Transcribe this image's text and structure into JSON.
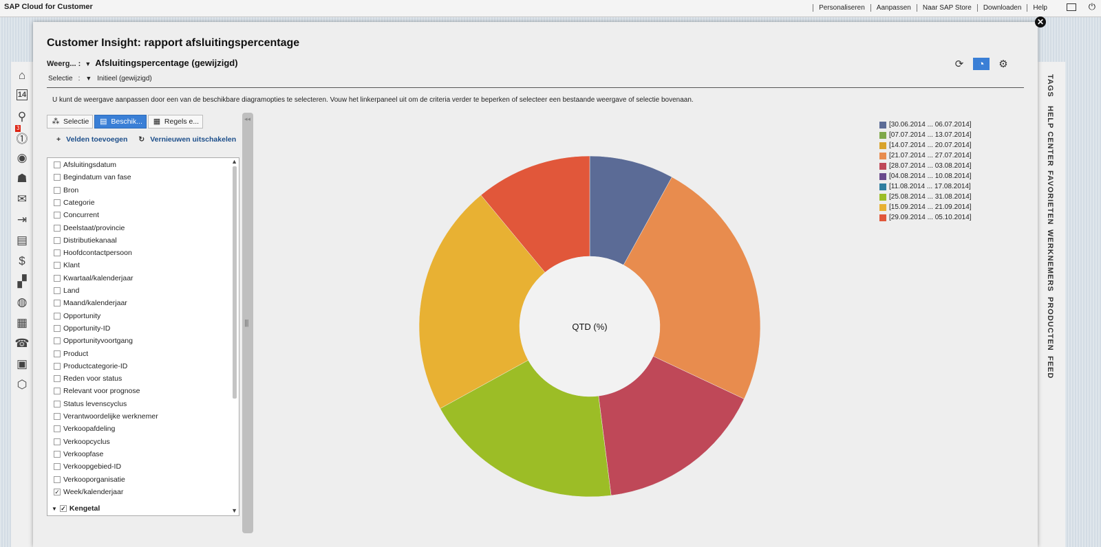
{
  "topbar": {
    "brand": "SAP Cloud for Customer",
    "links": [
      "Personaliseren",
      "Aanpassen",
      "Naar SAP Store",
      "Downloaden",
      "Help"
    ]
  },
  "leftrail": {
    "icons": [
      "home-icon",
      "calendar-14-icon",
      "search-icon",
      "alert-icon",
      "person-icon",
      "people-icon",
      "mail-icon",
      "sales-icon",
      "notebook-icon",
      "dollar-icon",
      "chart-person-icon",
      "globe-icon",
      "calendar-icon",
      "phone-book-icon",
      "clipboard-icon",
      "box-icon"
    ],
    "badge": "3"
  },
  "rightrail": {
    "tabs": [
      "TAGS",
      "HELP CENTER",
      "FAVORIETEN",
      "WERKNEMERS",
      "PRODUCTEN",
      "FEED"
    ]
  },
  "dialog": {
    "title": "Customer Insight: rapport afsluitingspercentage",
    "view_label": "Weerg... :",
    "view_value": "Afsluitingspercentage (gewijzigd)",
    "selection_label": "Selectie",
    "selection_colon": ":",
    "selection_value": "Initieel (gewijzigd)",
    "hint": "U kunt de weergave aanpassen door een van de beschikbare diagramopties te selecteren. Vouw het linkerpaneel uit om de criteria verder te beperken of selecteer een bestaande weergave of selectie bovenaan."
  },
  "panel": {
    "tabs": [
      "Selectie",
      "Beschik...",
      "Regels e..."
    ],
    "add_fields": "Velden toevoegen",
    "refresh": "Vernieuwen uitschakelen",
    "fields": [
      {
        "label": "Afsluitingsdatum",
        "checked": false
      },
      {
        "label": "Begindatum van fase",
        "checked": false
      },
      {
        "label": "Bron",
        "checked": false
      },
      {
        "label": "Categorie",
        "checked": false
      },
      {
        "label": "Concurrent",
        "checked": false
      },
      {
        "label": "Deelstaat/provincie",
        "checked": false
      },
      {
        "label": "Distributiekanaal",
        "checked": false
      },
      {
        "label": "Hoofdcontactpersoon",
        "checked": false
      },
      {
        "label": "Klant",
        "checked": false
      },
      {
        "label": "Kwartaal/kalenderjaar",
        "checked": false
      },
      {
        "label": "Land",
        "checked": false
      },
      {
        "label": "Maand/kalenderjaar",
        "checked": false
      },
      {
        "label": "Opportunity",
        "checked": false
      },
      {
        "label": "Opportunity-ID",
        "checked": false
      },
      {
        "label": "Opportunityvoortgang",
        "checked": false
      },
      {
        "label": "Product",
        "checked": false
      },
      {
        "label": "Productcategorie-ID",
        "checked": false
      },
      {
        "label": "Reden voor status",
        "checked": false
      },
      {
        "label": "Relevant voor prognose",
        "checked": false
      },
      {
        "label": "Status levenscyclus",
        "checked": false
      },
      {
        "label": "Verantwoordelijke werknemer",
        "checked": false
      },
      {
        "label": "Verkoopafdeling",
        "checked": false
      },
      {
        "label": "Verkoopcyclus",
        "checked": false
      },
      {
        "label": "Verkoopfase",
        "checked": false
      },
      {
        "label": "Verkoopgebied-ID",
        "checked": false
      },
      {
        "label": "Verkooporganisatie",
        "checked": false
      },
      {
        "label": "Week/kalenderjaar",
        "checked": true
      }
    ],
    "group_label": "Kengetal"
  },
  "chart_data": {
    "type": "pie",
    "center_label": "QTD (%)",
    "slices": [
      {
        "name": "[30.06.2014 ... 06.07.2014]",
        "value": 8,
        "color": "#5b6b96"
      },
      {
        "name": "[07.07.2014 ... 13.07.2014]",
        "value": 0,
        "color": "#7fa84a"
      },
      {
        "name": "[14.07.2014 ... 20.07.2014]",
        "value": 0,
        "color": "#d9a32b"
      },
      {
        "name": "[21.07.2014 ... 27.07.2014]",
        "value": 24,
        "color": "#e88c4e"
      },
      {
        "name": "[28.07.2014 ... 03.08.2014]",
        "value": 16,
        "color": "#bf4858"
      },
      {
        "name": "[04.08.2014 ... 10.08.2014]",
        "value": 0,
        "color": "#6a4a8c"
      },
      {
        "name": "[11.08.2014 ... 17.08.2014]",
        "value": 0,
        "color": "#2f7ea0"
      },
      {
        "name": "[25.08.2014 ... 31.08.2014]",
        "value": 19,
        "color": "#9cbd26"
      },
      {
        "name": "[15.09.2014 ... 21.09.2014]",
        "value": 22,
        "color": "#e8b133"
      },
      {
        "name": "[29.09.2014 ... 05.10.2014]",
        "value": 11,
        "color": "#e1573a"
      }
    ]
  }
}
